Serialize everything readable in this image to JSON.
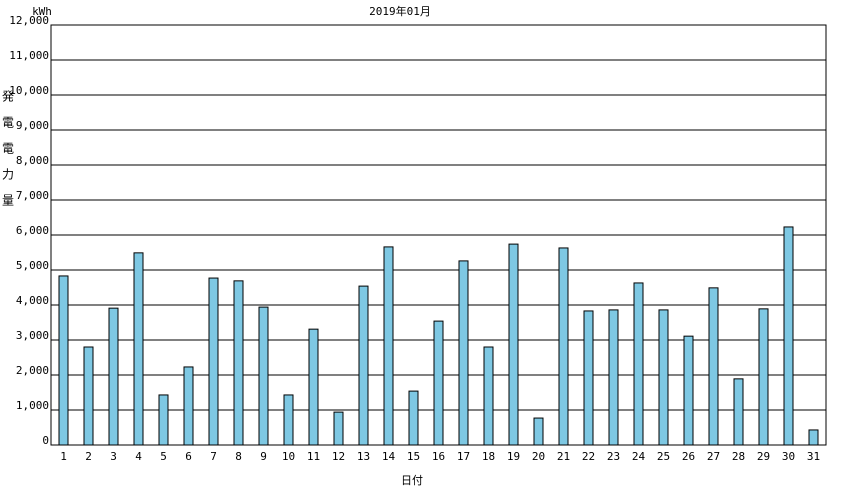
{
  "chart_data": {
    "type": "bar",
    "title": "2019年01月",
    "y_unit": "kWh",
    "y_label": "発電電力量",
    "x_label": "日付",
    "categories": [
      "1",
      "2",
      "3",
      "4",
      "5",
      "6",
      "7",
      "8",
      "9",
      "10",
      "11",
      "12",
      "13",
      "14",
      "15",
      "16",
      "17",
      "18",
      "19",
      "20",
      "21",
      "22",
      "23",
      "24",
      "25",
      "26",
      "27",
      "28",
      "29",
      "30",
      "31"
    ],
    "values": [
      4830,
      2800,
      3910,
      5490,
      1430,
      2230,
      4770,
      4690,
      3940,
      1430,
      3310,
      940,
      4540,
      5660,
      1540,
      3540,
      5260,
      2800,
      5740,
      770,
      5630,
      3830,
      3860,
      4630,
      3860,
      3110,
      4490,
      1890,
      3890,
      6230,
      430
    ],
    "color": "#7ec8e3",
    "ylim": [
      0,
      12000
    ],
    "yticks": [
      0,
      {
        "value": 1000,
        "label": "1,000"
      },
      {
        "value": 2000,
        "label": "2,000"
      },
      {
        "value": 3000,
        "label": "3,000"
      },
      {
        "value": 4000,
        "label": "4,000"
      },
      {
        "value": 5000,
        "label": "5,000"
      },
      {
        "value": 6000,
        "label": "6,000"
      },
      {
        "value": 7000,
        "label": "7,000"
      },
      {
        "value": 8000,
        "label": "8,000"
      },
      {
        "value": 9000,
        "label": "9,000"
      },
      {
        "value": 10000,
        "label": "10,000"
      },
      {
        "value": 11000,
        "label": "11,000"
      },
      {
        "value": 12000,
        "label": "12,000"
      }
    ],
    "grid": true
  }
}
